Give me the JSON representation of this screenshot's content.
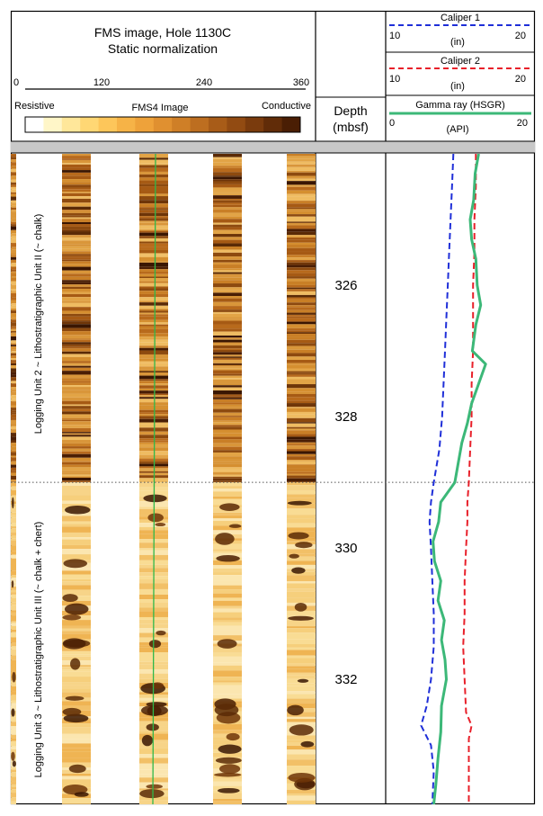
{
  "header": {
    "title_line1": "FMS image, Hole 1130C",
    "title_line2": "Static normalization",
    "azimuth_ticks": [
      "0",
      "120",
      "240",
      "360"
    ],
    "scale_left": "Resistive",
    "scale_mid": "FMS4 Image",
    "scale_right": "Conductive",
    "depth_line1": "Depth",
    "depth_line2": "(mbsf)"
  },
  "logs": {
    "caliper1": {
      "name": "Caliper 1",
      "min": "10",
      "max": "20",
      "unit": "(in)",
      "color": "#1f2fd8"
    },
    "caliper2": {
      "name": "Caliper 2",
      "min": "10",
      "max": "20",
      "unit": "(in)",
      "color": "#e8202a"
    },
    "gamma": {
      "name": "Gamma ray (HSGR)",
      "min": "0",
      "max": "20",
      "unit": "(API)",
      "color": "#3cb878"
    }
  },
  "units": {
    "unit2": "Logging Unit 2 ~ Lithostratigraphic Unit II (~ chalk)",
    "unit3": "Logging Unit 3 ~ Lithostratigraphic Unit III (~ chalk + chert)"
  },
  "colors": {
    "scale": [
      "#ffffff",
      "#fff6c8",
      "#ffe79a",
      "#ffd774",
      "#fdc65a",
      "#f6b347",
      "#eea23a",
      "#e09030",
      "#cf7f27",
      "#bd6e20",
      "#a85c18",
      "#924b12",
      "#7a3b0d",
      "#612c08",
      "#4a1e04"
    ],
    "resistive": "#fbe6b0",
    "conductive": "#5a2a06"
  },
  "chart_data": {
    "type": "line",
    "depth_axis": {
      "label": "Depth (mbsf)",
      "ticks": [
        326,
        328,
        330,
        332
      ],
      "range": [
        324.0,
        333.9
      ]
    },
    "unit_boundary_depth": 329.0,
    "series": [
      {
        "name": "Caliper 1",
        "unit": "in",
        "xlim": [
          10,
          20
        ],
        "depth": [
          324.0,
          324.5,
          325.0,
          325.5,
          326.0,
          326.5,
          327.0,
          327.5,
          328.0,
          328.5,
          329.0,
          329.3,
          329.6,
          330.0,
          330.5,
          331.0,
          331.5,
          332.0,
          332.4,
          332.7,
          333.0,
          333.4,
          333.9
        ],
        "values": [
          14.7,
          14.6,
          14.5,
          14.4,
          14.3,
          14.2,
          14.1,
          14.0,
          13.9,
          13.7,
          13.3,
          13.1,
          13.0,
          13.1,
          13.2,
          13.3,
          13.3,
          13.1,
          12.8,
          12.4,
          13.1,
          13.3,
          13.2
        ]
      },
      {
        "name": "Caliper 2",
        "unit": "in",
        "xlim": [
          10,
          20
        ],
        "depth": [
          324.0,
          324.5,
          325.0,
          325.5,
          326.0,
          326.5,
          327.0,
          327.5,
          328.0,
          328.5,
          329.0,
          329.3,
          329.6,
          330.0,
          330.5,
          331.0,
          331.5,
          332.0,
          332.5,
          332.7,
          332.9,
          333.4,
          333.9
        ],
        "values": [
          16.3,
          16.3,
          16.2,
          16.2,
          16.1,
          16.1,
          16.1,
          16.0,
          16.0,
          15.9,
          15.8,
          15.7,
          15.7,
          15.6,
          15.5,
          15.5,
          15.4,
          15.5,
          15.6,
          16.0,
          15.8,
          15.8,
          15.8
        ]
      },
      {
        "name": "Gamma ray (HSGR)",
        "unit": "API",
        "xlim": [
          0,
          20
        ],
        "depth": [
          324.0,
          324.3,
          324.7,
          325.0,
          325.3,
          325.6,
          326.0,
          326.3,
          326.6,
          327.0,
          327.2,
          327.5,
          327.8,
          328.1,
          328.4,
          328.7,
          329.0,
          329.3,
          329.6,
          329.9,
          330.2,
          330.5,
          330.8,
          331.1,
          331.4,
          331.7,
          332.0,
          332.4,
          332.8,
          333.2,
          333.6,
          333.9
        ],
        "values": [
          13.0,
          12.5,
          12.3,
          11.8,
          12.0,
          12.6,
          12.8,
          13.3,
          12.6,
          12.1,
          14.0,
          13.0,
          12.0,
          11.4,
          10.6,
          10.1,
          9.6,
          7.6,
          7.3,
          6.5,
          6.7,
          7.6,
          7.2,
          8.1,
          7.7,
          8.2,
          8.4,
          7.7,
          7.6,
          7.2,
          6.9,
          6.6
        ]
      }
    ]
  }
}
